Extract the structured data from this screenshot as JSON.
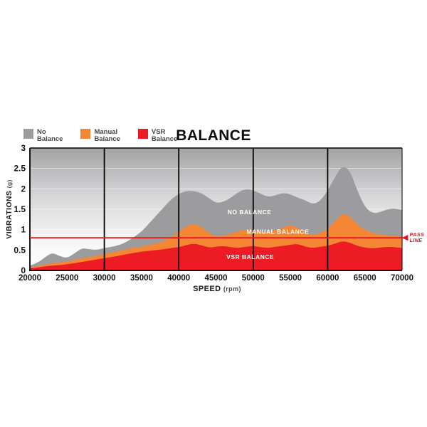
{
  "page": {
    "background": "#ffffff"
  },
  "chart": {
    "title": "BALANCE",
    "legend": [
      {
        "line1": "No",
        "line2": "Balance",
        "color": "#9c9c9e"
      },
      {
        "line1": "Manual",
        "line2": "Balance",
        "color": "#f58634"
      },
      {
        "line1": "VSR",
        "line2": "Balance",
        "color": "#ed1c24"
      }
    ],
    "y_axis": {
      "label": "VIBRATIONS",
      "unit": "(g)"
    },
    "x_axis": {
      "label": "SPEED",
      "unit": "(rpm)"
    },
    "pass_line_label": {
      "arrow": "◀",
      "line1": "PASS",
      "line2": "LINE"
    }
  },
  "chart_data": {
    "type": "area",
    "title": "BALANCE",
    "xlabel": "SPEED (rpm)",
    "ylabel": "VIBRATIONS (g)",
    "xlim": [
      20000,
      70000
    ],
    "ylim": [
      0,
      3
    ],
    "grid": "vertical-major",
    "legend_position": "top-left",
    "x_ticks": [
      20000,
      25000,
      30000,
      35000,
      40000,
      45000,
      50000,
      55000,
      60000,
      65000,
      70000
    ],
    "y_ticks": [
      0,
      0.5,
      1,
      1.5,
      2,
      2.5,
      3
    ],
    "grid_vlines": [
      30000,
      40000,
      50000,
      60000
    ],
    "pass_line": {
      "value": 0.8,
      "color": "#e8141c",
      "label": "PASS LINE"
    },
    "background_gradient_stops": [
      {
        "offset": "0%",
        "color": "#a3a3a5"
      },
      {
        "offset": "40%",
        "color": "#d8d8da"
      },
      {
        "offset": "75%",
        "color": "#f5f5f5"
      },
      {
        "offset": "100%",
        "color": "#ffffff"
      }
    ],
    "x": [
      20000,
      21000,
      22000,
      23000,
      24000,
      25000,
      26000,
      27000,
      28000,
      29000,
      30000,
      31000,
      32000,
      33000,
      34000,
      35000,
      36000,
      37000,
      38000,
      39000,
      40000,
      41000,
      42000,
      43000,
      44000,
      45000,
      46000,
      47000,
      48000,
      49000,
      50000,
      51000,
      52000,
      53000,
      54000,
      55000,
      56000,
      57000,
      58000,
      59000,
      60000,
      61000,
      62000,
      63000,
      64000,
      65000,
      66000,
      67000,
      68000,
      69000,
      70000
    ],
    "series": [
      {
        "name": "No Balance",
        "color": "#9c9c9e",
        "inline_label": {
          "text": "NO BALANCE",
          "x": 49500,
          "y": 1.38
        },
        "values": [
          0.12,
          0.18,
          0.32,
          0.44,
          0.35,
          0.3,
          0.42,
          0.55,
          0.52,
          0.5,
          0.55,
          0.58,
          0.62,
          0.7,
          0.82,
          0.95,
          1.15,
          1.35,
          1.55,
          1.75,
          1.88,
          1.95,
          1.95,
          1.9,
          1.78,
          1.65,
          1.68,
          1.78,
          1.92,
          2.0,
          1.97,
          1.88,
          1.8,
          1.84,
          1.9,
          1.87,
          1.78,
          1.72,
          1.62,
          1.7,
          1.95,
          2.3,
          2.58,
          2.45,
          1.95,
          1.55,
          1.4,
          1.42,
          1.5,
          1.52,
          1.48
        ]
      },
      {
        "name": "Manual Balance",
        "color": "#f58634",
        "inline_label": {
          "text": "MANUAL BALANCE",
          "x": 53300,
          "y": 0.9
        },
        "values": [
          0.08,
          0.1,
          0.14,
          0.18,
          0.2,
          0.22,
          0.26,
          0.3,
          0.33,
          0.36,
          0.4,
          0.44,
          0.48,
          0.52,
          0.56,
          0.58,
          0.62,
          0.66,
          0.72,
          0.82,
          0.95,
          1.08,
          1.15,
          1.08,
          0.92,
          0.82,
          0.85,
          0.9,
          0.96,
          1.0,
          1.0,
          0.96,
          0.94,
          0.98,
          1.05,
          1.12,
          1.05,
          0.92,
          0.86,
          0.92,
          1.0,
          1.2,
          1.4,
          1.32,
          1.12,
          1.0,
          0.92,
          0.88,
          0.86,
          0.85,
          0.82
        ]
      },
      {
        "name": "VSR Balance",
        "color": "#ed1c24",
        "inline_label": {
          "text": "VSR BALANCE",
          "x": 49600,
          "y": 0.28
        },
        "values": [
          0.05,
          0.07,
          0.1,
          0.12,
          0.13,
          0.15,
          0.18,
          0.21,
          0.24,
          0.27,
          0.3,
          0.33,
          0.36,
          0.4,
          0.43,
          0.46,
          0.48,
          0.5,
          0.52,
          0.55,
          0.57,
          0.62,
          0.66,
          0.62,
          0.56,
          0.58,
          0.6,
          0.57,
          0.55,
          0.58,
          0.6,
          0.57,
          0.55,
          0.58,
          0.6,
          0.63,
          0.65,
          0.58,
          0.55,
          0.58,
          0.6,
          0.66,
          0.72,
          0.68,
          0.6,
          0.56,
          0.54,
          0.56,
          0.58,
          0.57,
          0.55
        ]
      }
    ]
  }
}
